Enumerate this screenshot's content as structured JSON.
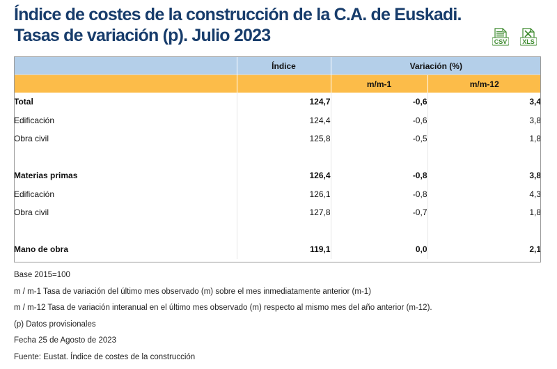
{
  "title": {
    "line1": "Índice de costes de la construcción de la C.A. de Euskadi.",
    "line2": "Tasas de variación (p). Julio 2023"
  },
  "downloads": [
    {
      "label": "CSV",
      "color": "#3d8a2e",
      "icon": "csv-file-icon"
    },
    {
      "label": "XLS",
      "color": "#3d8a2e",
      "icon": "xls-file-icon"
    }
  ],
  "colors": {
    "header_blue": "#b4cfe9",
    "header_orange": "#fcbc49",
    "title": "#173c6b"
  },
  "table": {
    "header_top": {
      "index": "Índice",
      "variation": "Variación (%)"
    },
    "header_sub": {
      "mm1": "m/m-1",
      "mm12": "m/m-12"
    },
    "rows": [
      {
        "label": "Total",
        "index": "124,7",
        "mm1": "-0,6",
        "mm12": "3,4"
      },
      {
        "label": "Edificación",
        "index": "124,4",
        "mm1": "-0,6",
        "mm12": "3,8"
      },
      {
        "label": "Obra civil",
        "index": "125,8",
        "mm1": "-0,5",
        "mm12": "1,8"
      },
      {
        "label": "Materias primas",
        "index": "126,4",
        "mm1": "-0,8",
        "mm12": "3,8"
      },
      {
        "label": "Edificación",
        "index": "126,1",
        "mm1": "-0,8",
        "mm12": "4,3"
      },
      {
        "label": "Obra civil",
        "index": "127,8",
        "mm1": "-0,7",
        "mm12": "1,8"
      },
      {
        "label": "Mano de obra",
        "index": "119,1",
        "mm1": "0,0",
        "mm12": "2,1"
      }
    ]
  },
  "notes": [
    "Base 2015=100",
    "m / m-1 Tasa de variación del último mes observado (m) sobre el mes inmediatamente anterior (m-1)",
    "m / m-12 Tasa de variación interanual en el último mes observado (m) respecto al mismo mes del año anterior (m-12).",
    "(p) Datos provisionales",
    "Fecha 25 de Agosto de 2023",
    "Fuente: Eustat. Índice de costes de la construcción"
  ]
}
